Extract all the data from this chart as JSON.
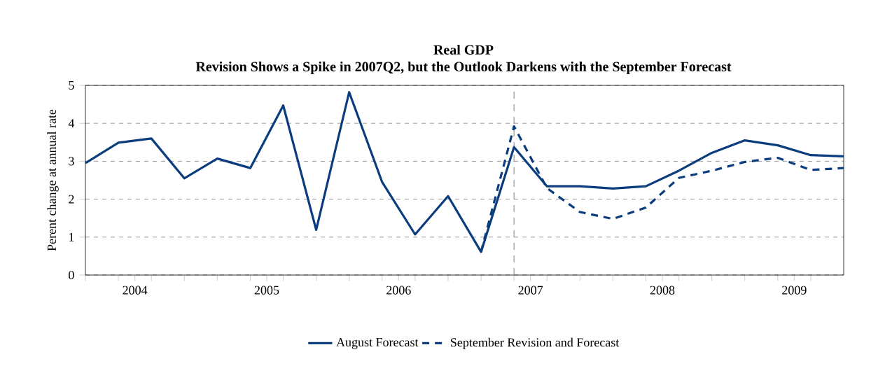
{
  "chart_data": {
    "type": "line",
    "title": "Real GDP",
    "subtitle": "Revision Shows a Spike in 2007Q2, but the Outlook Darkens with the September Forecast",
    "ylabel": "Perent change at annual rate",
    "x": [
      2004,
      2004.25,
      2004.5,
      2004.75,
      2005,
      2005.25,
      2005.5,
      2005.75,
      2006,
      2006.25,
      2006.5,
      2006.75,
      2007,
      2007.25,
      2007.5,
      2007.75,
      2008,
      2008.25,
      2008.5,
      2008.75,
      2009,
      2009.25,
      2009.5,
      2009.75
    ],
    "series": [
      {
        "name": "August Forecast",
        "color": "#0b3d7e",
        "line_style": "solid",
        "values": [
          2.95,
          3.49,
          3.6,
          2.55,
          3.07,
          2.82,
          4.47,
          1.19,
          4.82,
          2.45,
          1.07,
          2.08,
          0.61,
          3.37,
          2.34,
          2.34,
          2.28,
          2.34,
          2.75,
          3.22,
          3.55,
          3.42,
          3.16,
          3.13
        ]
      },
      {
        "name": "September Revision and Forecast",
        "color": "#0b3d7e",
        "line_style": "dashed",
        "values": [
          null,
          null,
          null,
          null,
          null,
          null,
          null,
          null,
          null,
          null,
          null,
          null,
          0.61,
          3.92,
          2.29,
          1.66,
          1.48,
          1.78,
          2.56,
          2.75,
          2.98,
          3.09,
          2.77,
          2.82
        ]
      }
    ],
    "xlim": [
      2004,
      2009.75
    ],
    "xticks": [
      {
        "value": 2004,
        "label": null
      },
      {
        "value": 2004.25,
        "label": null
      },
      {
        "value": 2004.5,
        "label": null
      },
      {
        "value": 2004.75,
        "label": null
      },
      {
        "value": 2005,
        "label": null
      },
      {
        "value": 2005.25,
        "label": null
      },
      {
        "value": 2005.5,
        "label": null
      },
      {
        "value": 2005.75,
        "label": null
      },
      {
        "value": 2006,
        "label": null
      },
      {
        "value": 2006.25,
        "label": null
      },
      {
        "value": 2006.5,
        "label": null
      },
      {
        "value": 2006.75,
        "label": null
      },
      {
        "value": 2007,
        "label": null
      },
      {
        "value": 2007.25,
        "label": null
      },
      {
        "value": 2007.5,
        "label": null
      },
      {
        "value": 2007.75,
        "label": null
      },
      {
        "value": 2008,
        "label": null
      },
      {
        "value": 2008.25,
        "label": null
      },
      {
        "value": 2008.5,
        "label": null
      },
      {
        "value": 2008.75,
        "label": null
      },
      {
        "value": 2009,
        "label": null
      },
      {
        "value": 2009.25,
        "label": null
      },
      {
        "value": 2009.5,
        "label": null
      },
      {
        "value": 2004.375,
        "label": "2004"
      },
      {
        "value": 2005.375,
        "label": "2005"
      },
      {
        "value": 2006.375,
        "label": "2006"
      },
      {
        "value": 2007.375,
        "label": "2007"
      },
      {
        "value": 2008.375,
        "label": "2008"
      },
      {
        "value": 2009.375,
        "label": "2009"
      }
    ],
    "ylim": [
      0,
      5
    ],
    "yticks": [
      0,
      1,
      2,
      3,
      4,
      5
    ],
    "grid": "y",
    "legend": "bottom",
    "marker": "none",
    "ref_lines": [
      {
        "axis": "x",
        "value": 2007.25,
        "color": "#808080",
        "line_style": "dashed"
      }
    ]
  }
}
